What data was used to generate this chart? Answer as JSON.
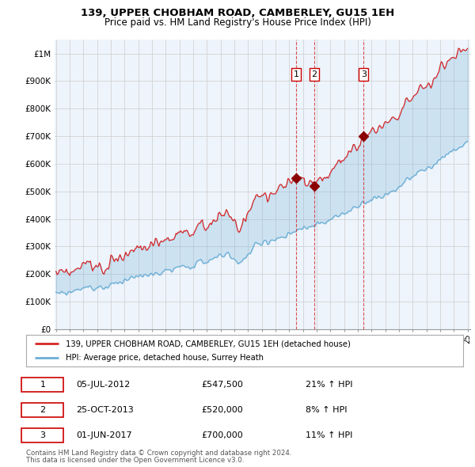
{
  "title": "139, UPPER CHOBHAM ROAD, CAMBERLEY, GU15 1EH",
  "subtitle": "Price paid vs. HM Land Registry's House Price Index (HPI)",
  "legend_line1": "139, UPPER CHOBHAM ROAD, CAMBERLEY, GU15 1EH (detached house)",
  "legend_line2": "HPI: Average price, detached house, Surrey Heath",
  "footer1": "Contains HM Land Registry data © Crown copyright and database right 2024.",
  "footer2": "This data is licensed under the Open Government Licence v3.0.",
  "transactions": [
    {
      "num": "1",
      "date": "05-JUL-2012",
      "price": "£547,500",
      "hpi": "21% ↑ HPI"
    },
    {
      "num": "2",
      "date": "25-OCT-2013",
      "price": "£520,000",
      "hpi": "8% ↑ HPI"
    },
    {
      "num": "3",
      "date": "01-JUN-2017",
      "price": "£700,000",
      "hpi": "11% ↑ HPI"
    }
  ],
  "sale_years": [
    2012.5,
    2013.83,
    2017.42
  ],
  "sale_prices": [
    547500,
    520000,
    700000
  ],
  "hpi_color": "#6baed6",
  "price_color": "#d62728",
  "marker_color": "#8b0000",
  "vline_color": "#d62728",
  "fill_color": "#ddeeff",
  "ylim": [
    0,
    1050000
  ],
  "yticks": [
    0,
    100000,
    200000,
    300000,
    400000,
    500000,
    600000,
    700000,
    800000,
    900000,
    1000000
  ],
  "ytick_labels": [
    "£0",
    "£100K",
    "£200K",
    "£300K",
    "£400K",
    "£500K",
    "£600K",
    "£700K",
    "£800K",
    "£900K",
    "£1M"
  ],
  "background_color": "#ffffff",
  "grid_color": "#cccccc",
  "plot_bg": "#eef4fb"
}
